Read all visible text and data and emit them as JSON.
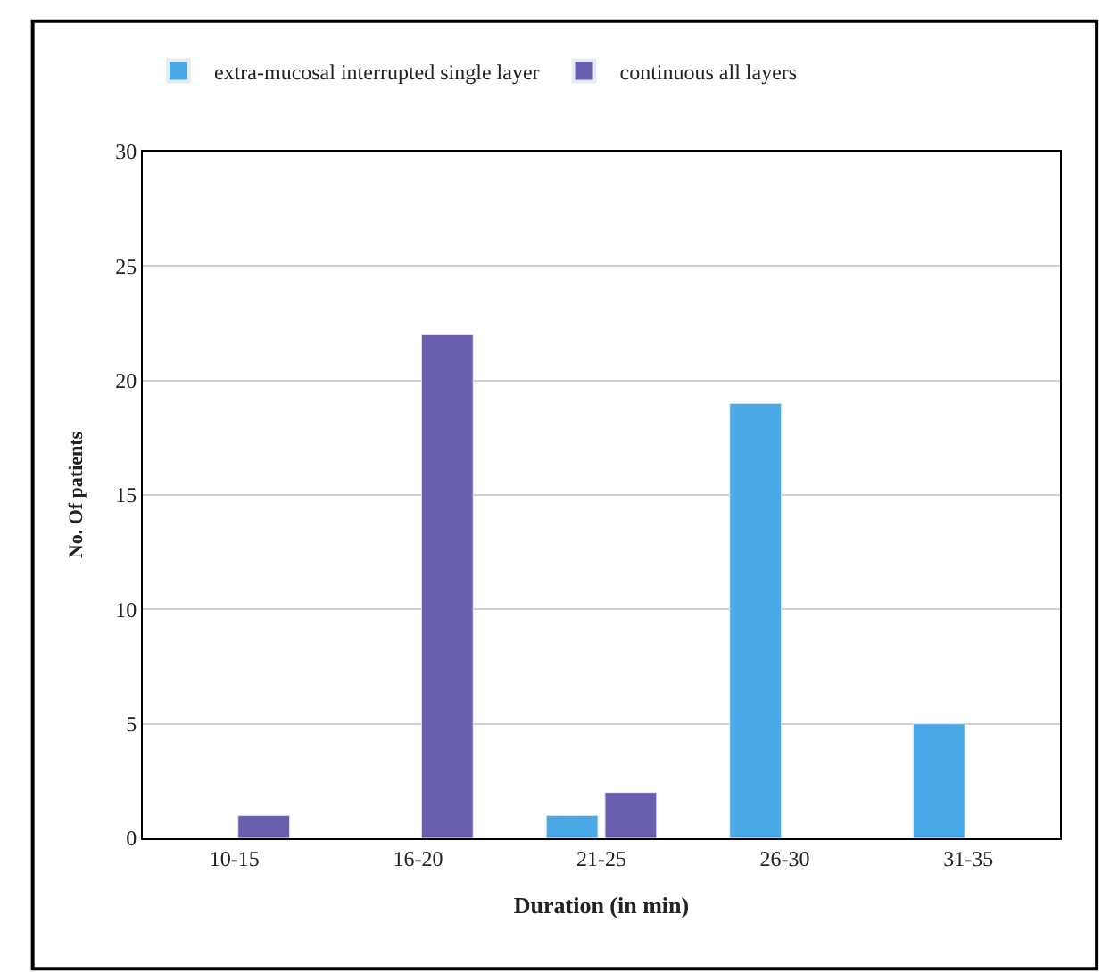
{
  "chart_data": {
    "type": "bar",
    "xlabel": "Duration (in min)",
    "ylabel": "No. Of patients",
    "categories": [
      "10-15",
      "16-20",
      "21-25",
      "26-30",
      "31-35"
    ],
    "series": [
      {
        "name": "extra-mucosal interrupted single layer",
        "color": "#4ba8e6",
        "values": [
          null,
          null,
          1,
          19,
          5
        ]
      },
      {
        "name": "continuous all layers",
        "color": "#6b5fb0",
        "values": [
          1,
          22,
          2,
          null,
          null
        ]
      }
    ],
    "ylim": [
      0,
      30
    ],
    "yticks": [
      0,
      5,
      10,
      15,
      20,
      25,
      30
    ],
    "grid": "y",
    "legend": "top"
  }
}
